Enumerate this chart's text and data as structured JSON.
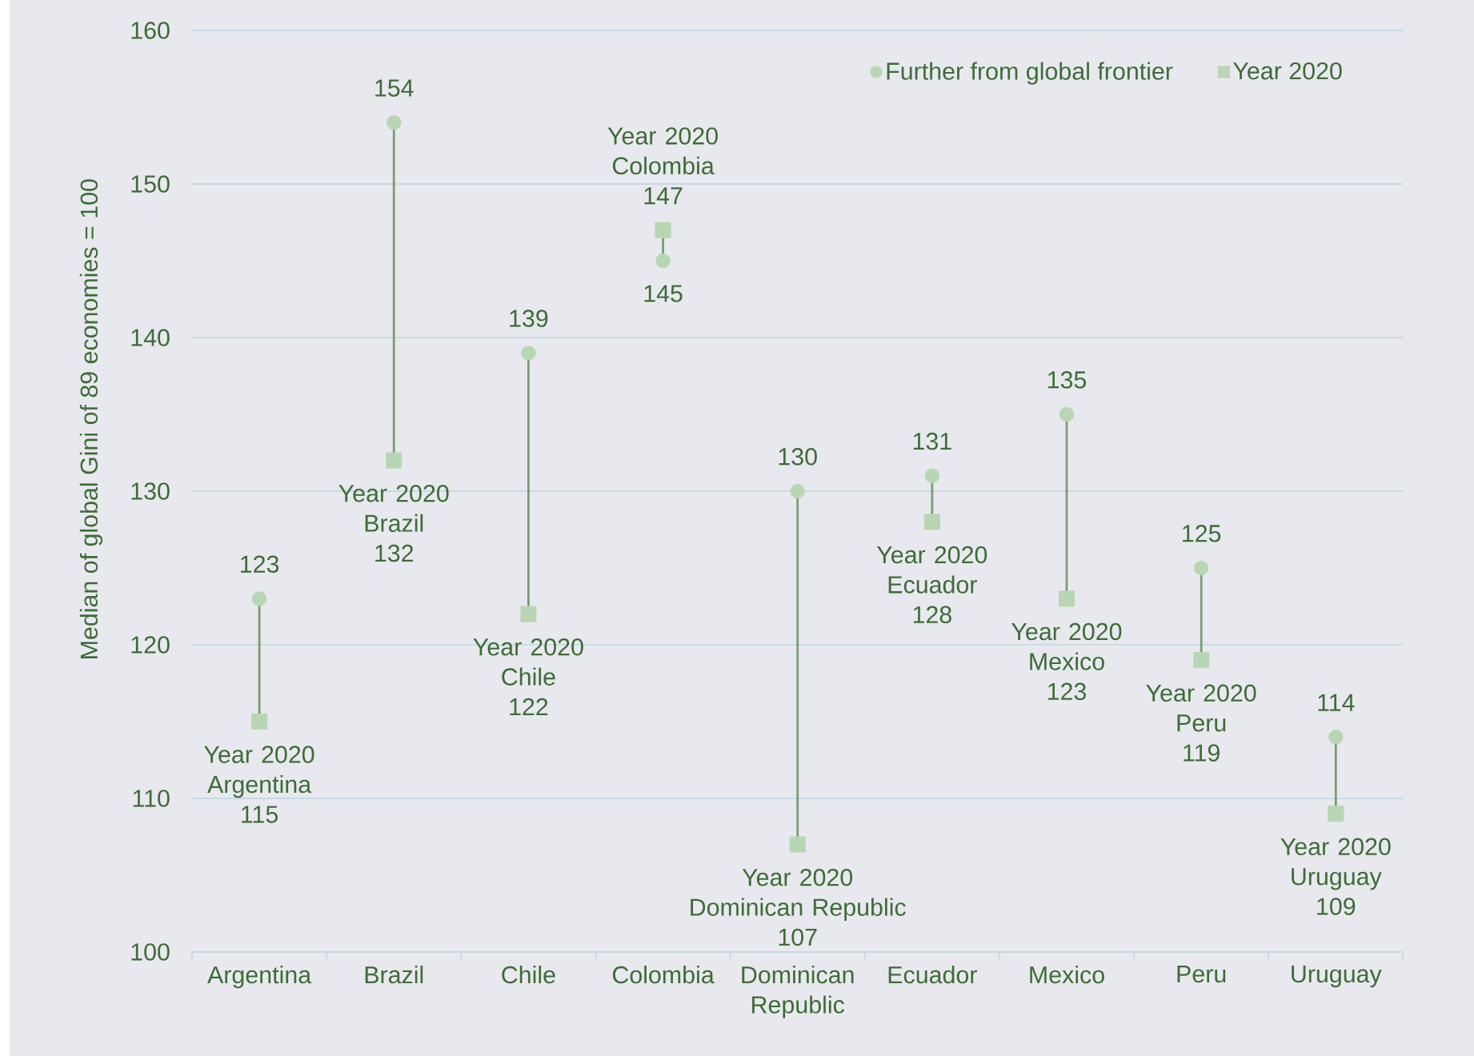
{
  "chart_data": {
    "type": "lollipop",
    "ylabel": "Median of global Gini of 89 economies = 100",
    "categories": [
      "Argentina",
      "Brazil",
      "Chile",
      "Colombia",
      "Dominican Republic",
      "Ecuador",
      "Mexico",
      "Peru",
      "Uruguay"
    ],
    "series": [
      {
        "name": "Further from global frontier",
        "color": "#b8d6b4",
        "marker": "circle",
        "values": [
          123,
          154,
          139,
          145,
          130,
          131,
          135,
          125,
          114
        ],
        "value_labels": [
          "123",
          "154",
          "139",
          "145",
          "130",
          "131",
          "135",
          "125",
          "114"
        ]
      },
      {
        "name": "Year 2020",
        "color": "#b8d6b4",
        "marker": "square",
        "values": [
          115,
          132,
          122,
          147,
          107,
          128,
          123,
          119,
          109
        ],
        "value_labels": [
          "Year 2020\nArgentina\n115",
          "Year 2020\nBrazil\n132",
          "Year 2020\nChile\n122",
          "Year 2020\nColombia\n147",
          "Year 2020\nDominican Republic\n107",
          "Year 2020\nEcuador\n128",
          "Year 2020\nMexico\n123",
          "Year 2020\nPeru\n119",
          "Year 2020\nUruguay\n109"
        ]
      }
    ],
    "ylim": [
      100,
      160
    ],
    "yticks": [
      100,
      110,
      120,
      130,
      140,
      150,
      160
    ],
    "grid": "y",
    "legend": "top right"
  }
}
